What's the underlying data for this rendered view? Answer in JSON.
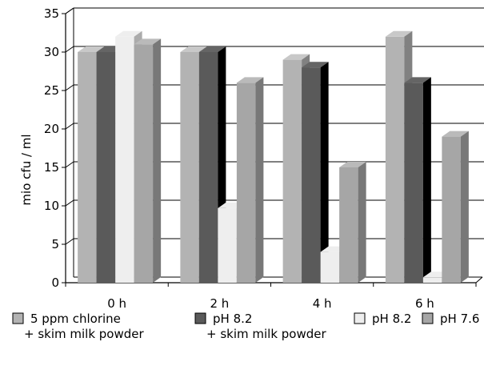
{
  "chart_data": {
    "type": "bar",
    "title": "",
    "xlabel": "",
    "ylabel": "mio  cfu / ml",
    "ylim": [
      0,
      35
    ],
    "yticks": [
      0,
      5,
      10,
      15,
      20,
      25,
      30,
      35
    ],
    "grid": true,
    "legend_position": "bottom",
    "categories": [
      "0 h",
      "2 h",
      "4 h",
      "6 h"
    ],
    "series": [
      {
        "name": "5 ppm chlorine\n+ skim milk powder",
        "color": "#b3b3b3",
        "values": [
          30,
          30,
          29,
          32
        ]
      },
      {
        "name": "pH 8.2\n+ skim milk powder",
        "color": "#5a5a5a",
        "values": [
          30,
          30,
          28,
          26
        ]
      },
      {
        "name": "pH 8.2",
        "color": "#eeeeee",
        "values": [
          32,
          9.7,
          4,
          0.7
        ]
      },
      {
        "name": "pH 7.6",
        "color": "#a6a6a6",
        "values": [
          31,
          26,
          15,
          19
        ]
      }
    ]
  }
}
